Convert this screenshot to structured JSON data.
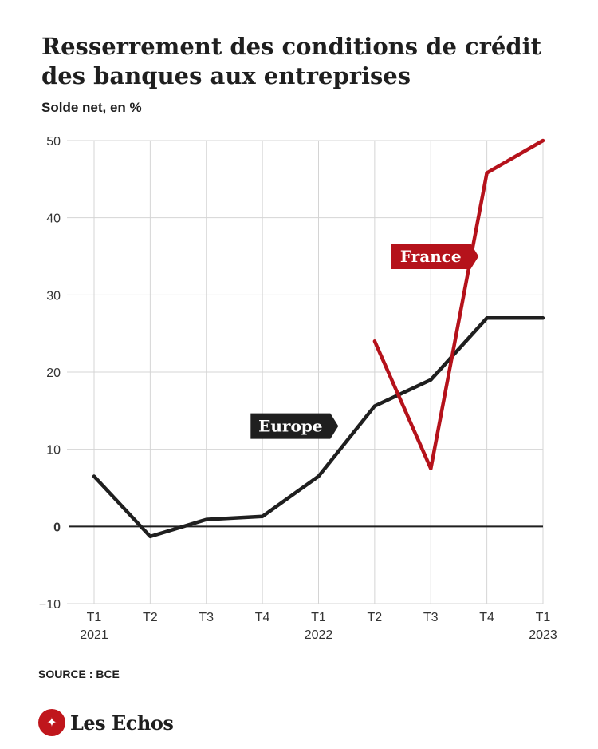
{
  "header": {
    "title": "Resserrement des conditions de crédit des banques aux entreprises",
    "subtitle": "Solde net, en %"
  },
  "footer": {
    "source": "SOURCE : BCE",
    "brand": "Les Echos"
  },
  "colors": {
    "europe": "#1f1f1f",
    "france": "#b5121b",
    "grid": "#d4d4d4",
    "brand": "#c0161c"
  },
  "chart_data": {
    "type": "line",
    "title": "Resserrement des conditions de crédit des banques aux entreprises",
    "ylabel": "Solde net, en %",
    "categories": [
      "T1 2021",
      "T2 2021",
      "T3 2021",
      "T4 2021",
      "T1 2022",
      "T2 2022",
      "T3 2022",
      "T4 2022",
      "T1 2023"
    ],
    "tick_labels": [
      {
        "period": "T1",
        "year": "2021"
      },
      {
        "period": "T2",
        "year": ""
      },
      {
        "period": "T3",
        "year": ""
      },
      {
        "period": "T4",
        "year": ""
      },
      {
        "period": "T1",
        "year": "2022"
      },
      {
        "period": "T2",
        "year": ""
      },
      {
        "period": "T3",
        "year": ""
      },
      {
        "period": "T4",
        "year": ""
      },
      {
        "period": "T1",
        "year": "2023"
      }
    ],
    "ylim": [
      -10,
      50
    ],
    "yticks": [
      -10,
      0,
      10,
      20,
      30,
      40,
      50
    ],
    "ytick_labels": [
      "−10",
      "0",
      "10",
      "20",
      "30",
      "40",
      "50"
    ],
    "grid": true,
    "series": [
      {
        "name": "Europe",
        "color": "#1f1f1f",
        "values": [
          6.5,
          -1.3,
          0.9,
          1.3,
          6.5,
          15.6,
          19.0,
          27.0,
          27.0
        ]
      },
      {
        "name": "France",
        "color": "#b5121b",
        "values": [
          null,
          null,
          null,
          null,
          null,
          24.0,
          7.5,
          45.8,
          50.0
        ]
      }
    ],
    "annotations": [
      {
        "text": "France",
        "series": "France",
        "x_index": 6.0,
        "y": 35,
        "pointer": "right"
      },
      {
        "text": "Europe",
        "series": "Europe",
        "x_index": 3.5,
        "y": 13,
        "pointer": "right"
      }
    ]
  }
}
